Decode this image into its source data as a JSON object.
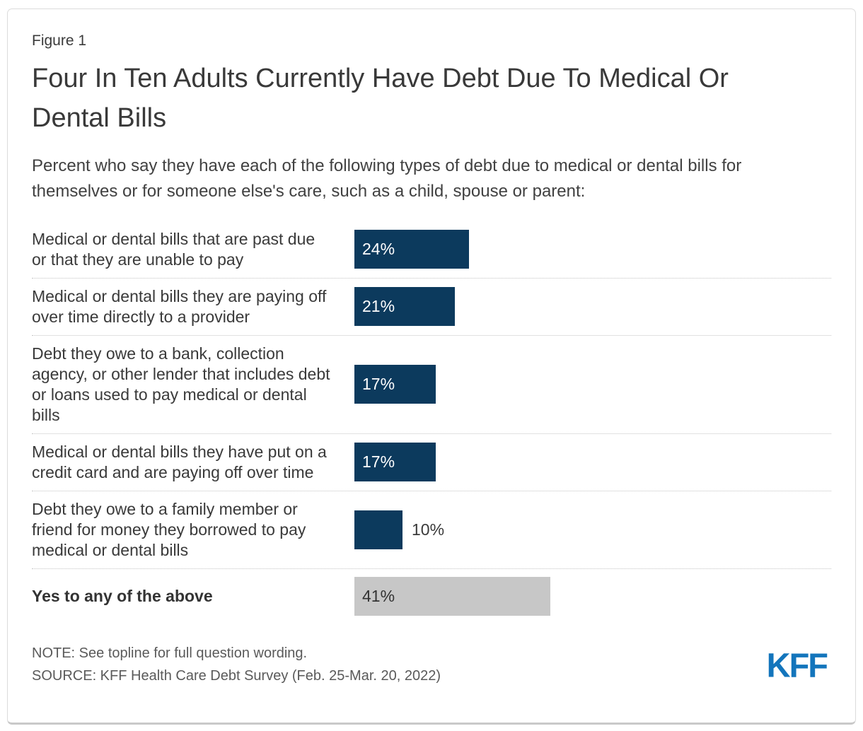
{
  "figure_label": "Figure 1",
  "title": "Four In Ten Adults Currently Have Debt Due To Medical Or Dental Bills",
  "subtitle": "Percent who say they have each of the following types of debt due to medical or dental bills for themselves or for someone else's care, such as a child, spouse or parent:",
  "note": "NOTE: See topline for full question wording.",
  "source": "SOURCE: KFF Health Care Debt Survey (Feb. 25-Mar. 20, 2022)",
  "logo_text": "KFF",
  "colors": {
    "bar_primary": "#0C3A5D",
    "bar_total": "#C7C7C7",
    "value_inside_primary": "#FFFFFF",
    "value_inside_total": "#333333",
    "value_outside": "#3A3A3A",
    "logo_blue": "#1375BC",
    "divider": "#C4C4C4"
  },
  "chart_data": {
    "type": "bar",
    "orientation": "horizontal",
    "value_unit": "percent",
    "xlim": [
      0,
      100
    ],
    "title": "Four In Ten Adults Currently Have Debt Due To Medical Or Dental Bills",
    "categories": [
      "Medical or dental bills that are past due or that they are unable to pay",
      "Medical or dental bills they are paying off over time directly to a provider",
      "Debt they owe to a bank, collection agency, or other lender that includes debt or loans used to pay medical or dental bills",
      "Medical or dental bills they have put on a credit card and are paying off over time",
      "Debt they owe to a family member or friend for money they borrowed to pay medical or dental bills",
      "Yes to any of the above"
    ],
    "values": [
      24,
      21,
      17,
      17,
      10,
      41
    ],
    "rows": [
      {
        "label": "Medical or dental bills that are past due or that they are unable to pay",
        "value": 24,
        "display": "24%",
        "variant": "primary",
        "value_position": "inside",
        "bold": false
      },
      {
        "label": "Medical or dental bills they are paying off over time directly to a provider",
        "value": 21,
        "display": "21%",
        "variant": "primary",
        "value_position": "inside",
        "bold": false
      },
      {
        "label": "Debt they owe to a bank, collection agency, or other lender that includes debt or loans used to pay medical or dental bills",
        "value": 17,
        "display": "17%",
        "variant": "primary",
        "value_position": "inside",
        "bold": false
      },
      {
        "label": "Medical or dental bills they have put on a credit card and are paying off over time",
        "value": 17,
        "display": "17%",
        "variant": "primary",
        "value_position": "inside",
        "bold": false
      },
      {
        "label": "Debt they owe to a family member or friend for money they borrowed to pay medical or dental bills",
        "value": 10,
        "display": "10%",
        "variant": "primary",
        "value_position": "outside",
        "bold": false
      },
      {
        "label": "Yes to any of the above",
        "value": 41,
        "display": "41%",
        "variant": "total",
        "value_position": "inside",
        "bold": true
      }
    ]
  }
}
